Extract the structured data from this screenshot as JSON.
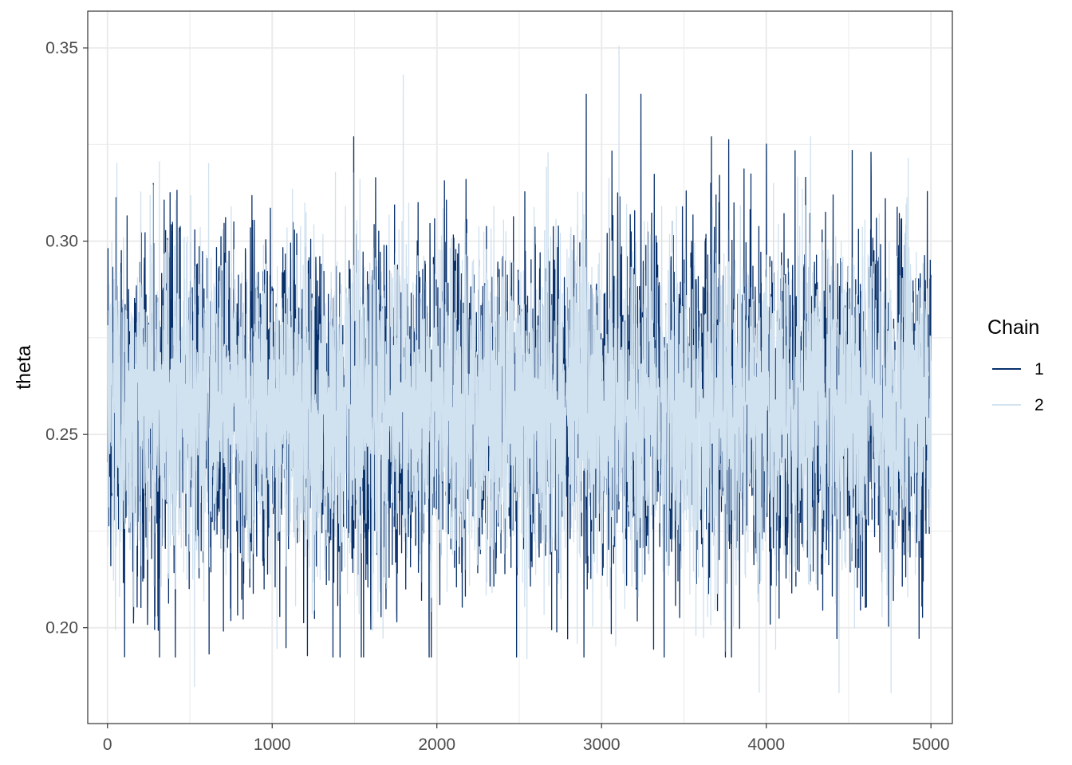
{
  "chart_data": {
    "type": "line",
    "title": "",
    "xlabel": "",
    "ylabel": "theta",
    "xlim": [
      -120,
      5130
    ],
    "ylim": [
      0.1752,
      0.3595
    ],
    "x_ticks": [
      0,
      1000,
      2000,
      3000,
      4000,
      5000
    ],
    "x_tick_labels": [
      "0",
      "1000",
      "2000",
      "3000",
      "4000",
      "5000"
    ],
    "y_ticks": [
      0.2,
      0.25,
      0.3,
      0.35
    ],
    "y_tick_labels": [
      "0.20",
      "0.25",
      "0.30",
      "0.35"
    ],
    "y_minor_ticks": [
      0.225,
      0.275,
      0.325
    ],
    "x_minor_ticks": [
      500,
      1500,
      2500,
      3500,
      4500
    ],
    "grid": true,
    "theme": "bw",
    "legend": {
      "title": "Chain",
      "position": "right"
    },
    "iterations": 5000,
    "series": [
      {
        "name": "1",
        "color": "#08306b",
        "mean": 0.257,
        "sd": 0.0215,
        "min": 0.1924,
        "max": 0.338,
        "spikes": [
          [
            1494,
            0.327
          ],
          [
            2906,
            0.338
          ],
          [
            3238,
            0.338
          ],
          [
            3666,
            0.327
          ],
          [
            4927,
            0.1972
          ],
          [
            3379,
            0.1924
          ],
          [
            616,
            0.1932
          ]
        ]
      },
      {
        "name": "2",
        "color": "#d0e1ef",
        "mean": 0.257,
        "sd": 0.0205,
        "min": 0.1832,
        "max": 0.3505,
        "spikes": [
          [
            3105,
            0.3505
          ],
          [
            1795,
            0.343
          ],
          [
            4268,
            0.327
          ],
          [
            527,
            0.1848
          ],
          [
            4757,
            0.1832
          ]
        ]
      }
    ]
  }
}
